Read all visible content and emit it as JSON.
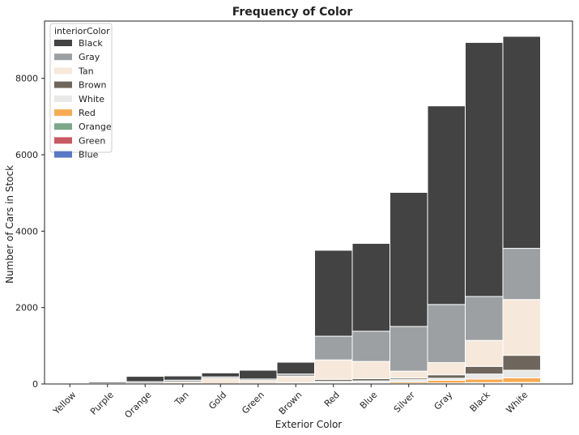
{
  "chart_data": {
    "type": "bar",
    "stacked": true,
    "title": "Frequency of Color",
    "xlabel": "Exterior Color",
    "ylabel": "Number of Cars in Stock",
    "ylim": [
      0,
      9500
    ],
    "yticks": [
      0,
      2000,
      4000,
      6000,
      8000
    ],
    "grid": false,
    "legend": {
      "title": "interiorColor",
      "placement": "top-left"
    },
    "categories": [
      "Yellow",
      "Purple",
      "Orange",
      "Tan",
      "Gold",
      "Green",
      "Brown",
      "Red",
      "Blue",
      "Silver",
      "Gray",
      "Black",
      "White"
    ],
    "series": [
      {
        "name": "Blue",
        "color": "#5a78c8",
        "values": [
          0,
          0,
          0,
          0,
          0,
          0,
          0,
          5,
          5,
          5,
          10,
          10,
          15
        ]
      },
      {
        "name": "Green",
        "color": "#c85a62",
        "values": [
          0,
          0,
          0,
          0,
          0,
          0,
          0,
          5,
          5,
          5,
          5,
          10,
          10
        ]
      },
      {
        "name": "Orange",
        "color": "#7aa88a",
        "values": [
          0,
          0,
          0,
          0,
          0,
          0,
          0,
          5,
          5,
          5,
          10,
          15,
          15
        ]
      },
      {
        "name": "Red",
        "color": "#f8ab52",
        "values": [
          0,
          0,
          0,
          0,
          0,
          0,
          0,
          10,
          10,
          40,
          70,
          95,
          120
        ]
      },
      {
        "name": "White",
        "color": "#e8e8e6",
        "values": [
          0,
          0,
          0,
          0,
          0,
          0,
          10,
          45,
          55,
          60,
          55,
          130,
          200
        ]
      },
      {
        "name": "Brown",
        "color": "#6e665c",
        "values": [
          0,
          0,
          0,
          0,
          0,
          10,
          20,
          50,
          60,
          40,
          90,
          200,
          390
        ]
      },
      {
        "name": "Tan",
        "color": "#f6e9db",
        "values": [
          5,
          10,
          20,
          50,
          145,
          80,
          170,
          510,
          450,
          180,
          320,
          680,
          1460
        ]
      },
      {
        "name": "Gray",
        "color": "#9ca0a2",
        "values": [
          5,
          10,
          40,
          50,
          40,
          40,
          60,
          620,
          790,
          1170,
          1520,
          1150,
          1340
        ]
      },
      {
        "name": "Black",
        "color": "#434343",
        "values": [
          20,
          35,
          140,
          110,
          105,
          230,
          310,
          2250,
          2300,
          3510,
          5200,
          6650,
          5550
        ]
      }
    ]
  }
}
